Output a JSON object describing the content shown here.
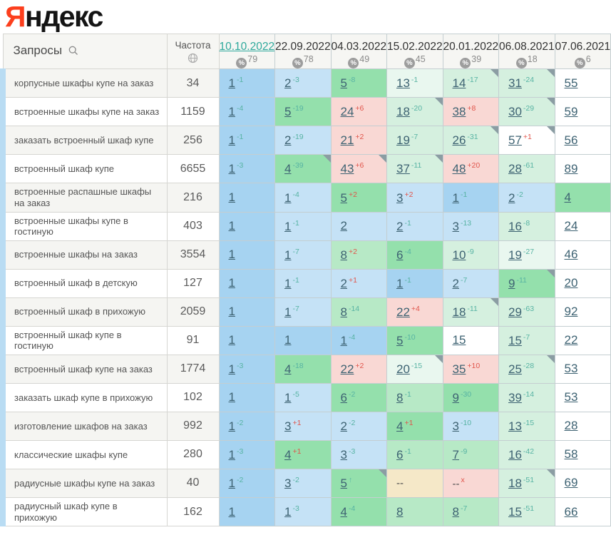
{
  "logo": {
    "part1": "Я",
    "part2": "ндекс"
  },
  "colors": {
    "logo_red": "#fc3f1d",
    "selected_date": "#2fa99c",
    "sup_green": "#57b3a3",
    "sup_red": "#e0554b",
    "corner": "#8b9da3",
    "row_strip": "#b9dcf3",
    "cell_b1": "#a6d3f1",
    "cell_b2": "#c5e2f6",
    "cell_g1": "#94e0ac",
    "cell_g15": "#b7e9c6",
    "cell_g2": "#d5f0df",
    "cell_g3": "#e9f7ef",
    "cell_r": "#f9d8d4",
    "cell_y": "#f5e8c8"
  },
  "table": {
    "queries_header": "Запросы",
    "frequency_header": "Частота",
    "icons": {
      "search": "search-icon",
      "globe": "globe-icon",
      "percent": "percent-icon"
    },
    "dates": [
      {
        "label": "10.10.2022",
        "coverage": "79",
        "selected": true
      },
      {
        "label": "22.09.2022",
        "coverage": "78",
        "selected": false
      },
      {
        "label": "04.03.2022",
        "coverage": "49",
        "selected": false
      },
      {
        "label": "15.02.2022",
        "coverage": "45",
        "selected": false
      },
      {
        "label": "20.01.2022",
        "coverage": "39",
        "selected": false
      },
      {
        "label": "06.08.2021",
        "coverage": "18",
        "selected": false
      },
      {
        "label": "07.06.2021",
        "coverage": "6",
        "selected": false
      }
    ],
    "rows": [
      {
        "query": "корпусные шкафы купе на заказ",
        "frequency": "34",
        "cells": [
          {
            "p": "1",
            "s": "-1",
            "bg": "b1"
          },
          {
            "p": "2",
            "s": "-3",
            "bg": "b2"
          },
          {
            "p": "5",
            "s": "-8",
            "bg": "g1"
          },
          {
            "p": "13",
            "s": "-1",
            "bg": "g3"
          },
          {
            "p": "14",
            "s": "-17",
            "bg": "g2",
            "c": true
          },
          {
            "p": "31",
            "s": "-24",
            "bg": "g2",
            "c": true
          },
          {
            "p": "55",
            "bg": "w"
          }
        ]
      },
      {
        "query": "встроенные шкафы купе на заказ",
        "frequency": "1159",
        "cells": [
          {
            "p": "1",
            "s": "-4",
            "bg": "b1"
          },
          {
            "p": "5",
            "s": "-19",
            "bg": "g1"
          },
          {
            "p": "24",
            "s": "+6",
            "r": true,
            "bg": "r"
          },
          {
            "p": "18",
            "s": "-20",
            "bg": "g2",
            "c": true
          },
          {
            "p": "38",
            "s": "+8",
            "r": true,
            "bg": "r"
          },
          {
            "p": "30",
            "s": "-29",
            "bg": "g2",
            "c": true
          },
          {
            "p": "59",
            "bg": "w"
          }
        ]
      },
      {
        "query": "заказать встроенный шкаф купе",
        "frequency": "256",
        "cells": [
          {
            "p": "1",
            "s": "-1",
            "bg": "b1"
          },
          {
            "p": "2",
            "s": "-19",
            "bg": "b2"
          },
          {
            "p": "21",
            "s": "+2",
            "r": true,
            "bg": "r"
          },
          {
            "p": "19",
            "s": "-7",
            "bg": "g2"
          },
          {
            "p": "26",
            "s": "-31",
            "bg": "g2",
            "c": true
          },
          {
            "p": "57",
            "s": "+1",
            "r": true,
            "bg": "w",
            "c": true
          },
          {
            "p": "56",
            "bg": "w"
          }
        ]
      },
      {
        "query": "встроенный шкаф купе",
        "frequency": "6655",
        "cells": [
          {
            "p": "1",
            "s": "-3",
            "bg": "b1"
          },
          {
            "p": "4",
            "s": "-39",
            "bg": "g1",
            "c": true
          },
          {
            "p": "43",
            "s": "+6",
            "r": true,
            "bg": "r",
            "c": true
          },
          {
            "p": "37",
            "s": "-11",
            "bg": "g2",
            "c": true
          },
          {
            "p": "48",
            "s": "+20",
            "r": true,
            "bg": "r"
          },
          {
            "p": "28",
            "s": "-61",
            "bg": "g2"
          },
          {
            "p": "89",
            "bg": "w"
          }
        ]
      },
      {
        "query": "встроенные распашные шкафы на заказ",
        "frequency": "216",
        "cells": [
          {
            "p": "1",
            "bg": "b1"
          },
          {
            "p": "1",
            "s": "-4",
            "bg": "b2"
          },
          {
            "p": "5",
            "s": "+2",
            "r": true,
            "bg": "g1"
          },
          {
            "p": "3",
            "s": "+2",
            "r": true,
            "bg": "b2"
          },
          {
            "p": "1",
            "s": "-1",
            "bg": "b1"
          },
          {
            "p": "2",
            "s": "-2",
            "bg": "b2"
          },
          {
            "p": "4",
            "bg": "g1"
          }
        ]
      },
      {
        "query": "встроенные шкафы купе в гостиную",
        "frequency": "403",
        "cells": [
          {
            "p": "1",
            "bg": "b1"
          },
          {
            "p": "1",
            "s": "-1",
            "bg": "b2"
          },
          {
            "p": "2",
            "bg": "b2"
          },
          {
            "p": "2",
            "s": "-1",
            "bg": "b2"
          },
          {
            "p": "3",
            "s": "-13",
            "bg": "b2"
          },
          {
            "p": "16",
            "s": "-8",
            "bg": "g2"
          },
          {
            "p": "24",
            "bg": "w"
          }
        ]
      },
      {
        "query": "встроенные шкафы на заказ",
        "frequency": "3554",
        "cells": [
          {
            "p": "1",
            "bg": "b1"
          },
          {
            "p": "1",
            "s": "-7",
            "bg": "b2"
          },
          {
            "p": "8",
            "s": "+2",
            "r": true,
            "bg": "g15"
          },
          {
            "p": "6",
            "s": "-4",
            "bg": "g1"
          },
          {
            "p": "10",
            "s": "-9",
            "bg": "g2"
          },
          {
            "p": "19",
            "s": "-27",
            "bg": "g3"
          },
          {
            "p": "46",
            "bg": "w"
          }
        ]
      },
      {
        "query": "встроенный шкаф в детскую",
        "frequency": "127",
        "cells": [
          {
            "p": "1",
            "bg": "b1"
          },
          {
            "p": "1",
            "s": "-1",
            "bg": "b2"
          },
          {
            "p": "2",
            "s": "+1",
            "r": true,
            "bg": "b2"
          },
          {
            "p": "1",
            "s": "-1",
            "bg": "b1"
          },
          {
            "p": "2",
            "s": "-7",
            "bg": "b2"
          },
          {
            "p": "9",
            "s": "-11",
            "bg": "g1",
            "c": true
          },
          {
            "p": "20",
            "bg": "w"
          }
        ]
      },
      {
        "query": "встроенный шкаф в прихожую",
        "frequency": "2059",
        "cells": [
          {
            "p": "1",
            "bg": "b1"
          },
          {
            "p": "1",
            "s": "-7",
            "bg": "b2"
          },
          {
            "p": "8",
            "s": "-14",
            "bg": "g15"
          },
          {
            "p": "22",
            "s": "+4",
            "r": true,
            "bg": "r"
          },
          {
            "p": "18",
            "s": "-11",
            "bg": "g2",
            "c": true
          },
          {
            "p": "29",
            "s": "-63",
            "bg": "g2"
          },
          {
            "p": "92",
            "bg": "w"
          }
        ]
      },
      {
        "query": "встроенный шкаф купе в гостиную",
        "frequency": "91",
        "cells": [
          {
            "p": "1",
            "bg": "b1"
          },
          {
            "p": "1",
            "bg": "b1"
          },
          {
            "p": "1",
            "s": "-4",
            "bg": "b1"
          },
          {
            "p": "5",
            "s": "-10",
            "bg": "g1"
          },
          {
            "p": "15",
            "bg": "w"
          },
          {
            "p": "15",
            "s": "-7",
            "bg": "g2"
          },
          {
            "p": "22",
            "bg": "w"
          }
        ]
      },
      {
        "query": "встроенный шкаф купе на заказ",
        "frequency": "1774",
        "cells": [
          {
            "p": "1",
            "s": "-3",
            "bg": "b1"
          },
          {
            "p": "4",
            "s": "-18",
            "bg": "g1"
          },
          {
            "p": "22",
            "s": "+2",
            "r": true,
            "bg": "r"
          },
          {
            "p": "20",
            "s": "-15",
            "bg": "g3",
            "c": true
          },
          {
            "p": "35",
            "s": "+10",
            "r": true,
            "bg": "r"
          },
          {
            "p": "25",
            "s": "-28",
            "bg": "g2",
            "c": true
          },
          {
            "p": "53",
            "bg": "w"
          }
        ]
      },
      {
        "query": "заказать шкаф купе в прихожую",
        "frequency": "102",
        "cells": [
          {
            "p": "1",
            "bg": "b1"
          },
          {
            "p": "1",
            "s": "-5",
            "bg": "b2"
          },
          {
            "p": "6",
            "s": "-2",
            "bg": "g1"
          },
          {
            "p": "8",
            "s": "-1",
            "bg": "g15"
          },
          {
            "p": "9",
            "s": "-30",
            "bg": "g1"
          },
          {
            "p": "39",
            "s": "-14",
            "bg": "g2"
          },
          {
            "p": "53",
            "bg": "w"
          }
        ]
      },
      {
        "query": "изготовление шкафов на заказ",
        "frequency": "992",
        "cells": [
          {
            "p": "1",
            "s": "-2",
            "bg": "b1"
          },
          {
            "p": "3",
            "s": "+1",
            "r": true,
            "bg": "b2"
          },
          {
            "p": "2",
            "s": "-2",
            "bg": "b2"
          },
          {
            "p": "4",
            "s": "+1",
            "r": true,
            "bg": "g1"
          },
          {
            "p": "3",
            "s": "-10",
            "bg": "b2"
          },
          {
            "p": "13",
            "s": "-15",
            "bg": "g2"
          },
          {
            "p": "28",
            "bg": "w"
          }
        ]
      },
      {
        "query": "классические шкафы купе",
        "frequency": "280",
        "cells": [
          {
            "p": "1",
            "s": "-3",
            "bg": "b1"
          },
          {
            "p": "4",
            "s": "+1",
            "r": true,
            "bg": "g1"
          },
          {
            "p": "3",
            "s": "-3",
            "bg": "b2"
          },
          {
            "p": "6",
            "s": "-1",
            "bg": "g15"
          },
          {
            "p": "7",
            "s": "-9",
            "bg": "g15"
          },
          {
            "p": "16",
            "s": "-42",
            "bg": "g2"
          },
          {
            "p": "58",
            "bg": "w"
          }
        ]
      },
      {
        "query": "радиусные шкафы купе на заказ",
        "frequency": "40",
        "cells": [
          {
            "p": "1",
            "s": "-2",
            "bg": "b1"
          },
          {
            "p": "3",
            "s": "-2",
            "bg": "b2"
          },
          {
            "p": "5",
            "s": "↑",
            "bg": "g1",
            "c": true
          },
          {
            "p": "--",
            "bg": "y",
            "dead": true
          },
          {
            "p": "--",
            "s": "x",
            "r": true,
            "bg": "r",
            "dead": true
          },
          {
            "p": "18",
            "s": "-51",
            "bg": "g2",
            "c": true
          },
          {
            "p": "69",
            "bg": "w"
          }
        ]
      },
      {
        "query": "радиусный шкаф купе в прихожую",
        "frequency": "162",
        "cells": [
          {
            "p": "1",
            "bg": "b1"
          },
          {
            "p": "1",
            "s": "-3",
            "bg": "b2"
          },
          {
            "p": "4",
            "s": "-4",
            "bg": "g1"
          },
          {
            "p": "8",
            "bg": "g15"
          },
          {
            "p": "8",
            "s": "-7",
            "bg": "g15"
          },
          {
            "p": "15",
            "s": "-51",
            "bg": "g2"
          },
          {
            "p": "66",
            "bg": "w"
          }
        ]
      }
    ]
  }
}
